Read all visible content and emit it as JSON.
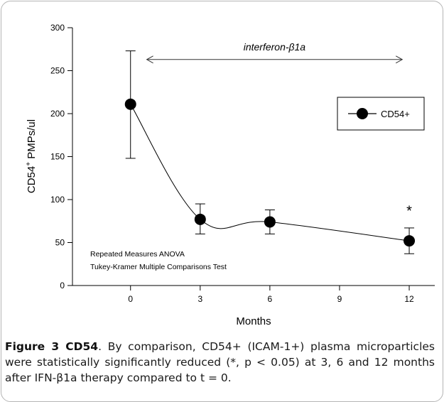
{
  "chart_data": {
    "type": "line",
    "x": [
      0,
      3,
      6,
      12
    ],
    "series": [
      {
        "name": "CD54+",
        "values": [
          211,
          77,
          74,
          52
        ],
        "error_upper": [
          273,
          95,
          88,
          67
        ],
        "error_lower": [
          148,
          60,
          60,
          37
        ],
        "color": "#000000",
        "marker": "filled-circle"
      }
    ],
    "xlabel": "Months",
    "ylabel_main": "CD54",
    "ylabel_sup": "+",
    "ylabel_rest": " PMPs/ul",
    "xlim": [
      -2.5,
      13.1
    ],
    "ylim": [
      0,
      300
    ],
    "xticks": [
      0,
      3,
      6,
      9,
      12
    ],
    "yticks": [
      0,
      50,
      100,
      150,
      200,
      250,
      300
    ],
    "grid": false,
    "legend_position": "top-right",
    "annotations": {
      "treatment_label": "interferon-β1a",
      "treatment_span": [
        0.7,
        11.7
      ],
      "treatment_y": 263,
      "significance_marker": "*",
      "significance_x": 12,
      "significance_y": 88,
      "stats_line1": "Repeated Measures ANOVA",
      "stats_line2": "Tukey-Kramer Multiple Comparisons Test"
    }
  },
  "caption": {
    "title": "Figure 3 CD54",
    "body": ". By comparison, CD54+ (ICAM-1+) plasma microparticles were statistically significantly reduced (*, p < 0.05) at 3, 6 and 12 months after IFN-β1a therapy compared to t = 0."
  }
}
